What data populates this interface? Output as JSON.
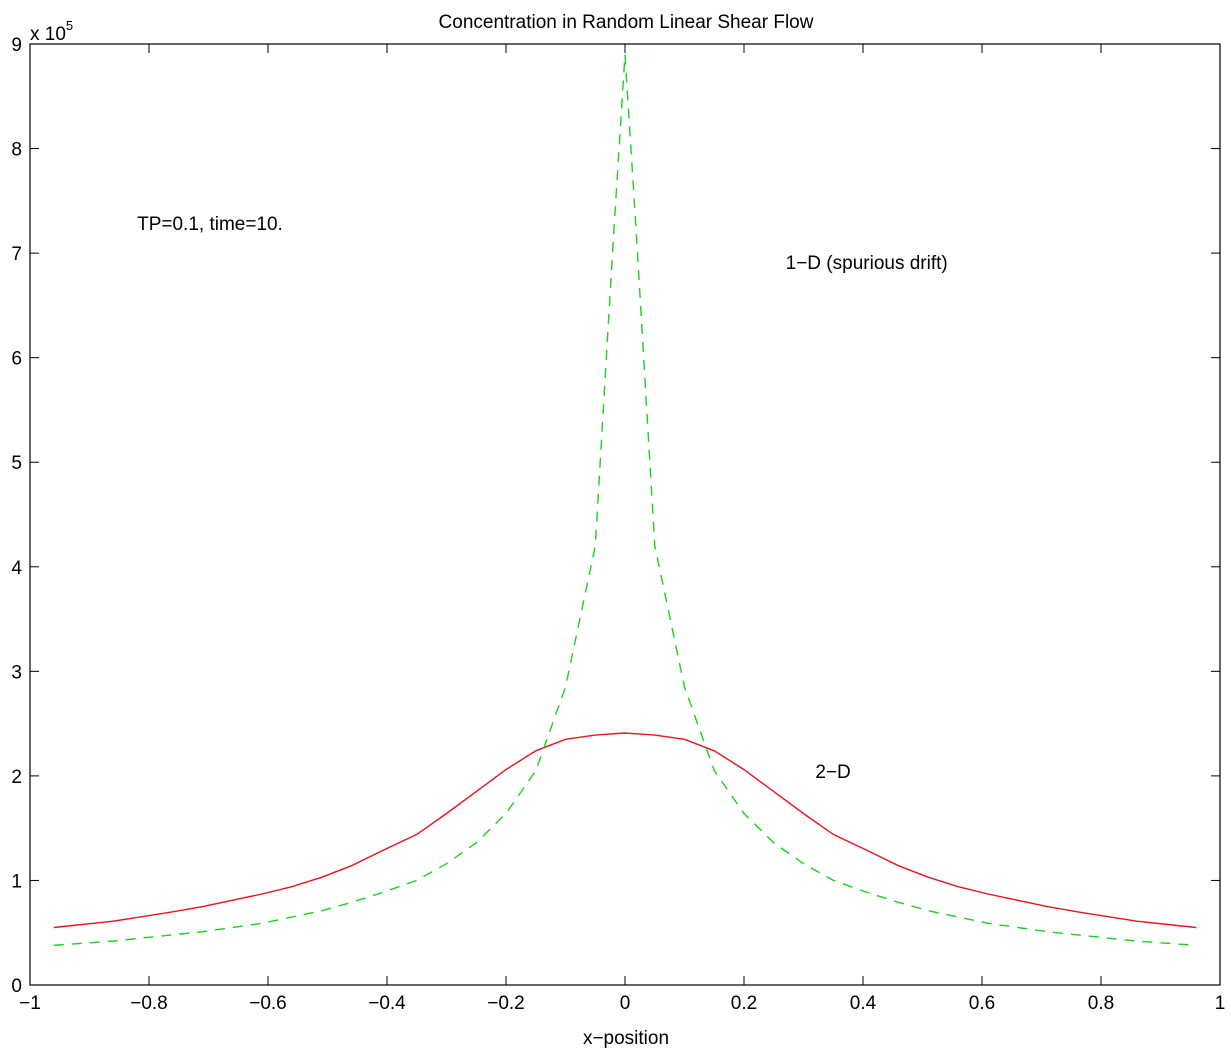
{
  "chart_data": {
    "type": "line",
    "title": "Concentration in Random Linear Shear Flow",
    "xlabel": "x−position",
    "ylabel": "",
    "y_exponent_label": "x 10",
    "y_exponent_power": "5",
    "xlim": [
      -1,
      1
    ],
    "ylim": [
      0,
      9
    ],
    "xticks": [
      -1,
      -0.8,
      -0.6,
      -0.4,
      -0.2,
      0,
      0.2,
      0.4,
      0.6,
      0.8,
      1
    ],
    "xtick_labels": [
      "−1",
      "−0.8",
      "−0.6",
      "−0.4",
      "−0.2",
      "0",
      "0.2",
      "0.4",
      "0.6",
      "0.8",
      "1"
    ],
    "yticks": [
      0,
      1,
      2,
      3,
      4,
      5,
      6,
      7,
      8,
      9
    ],
    "ytick_labels": [
      "0",
      "1",
      "2",
      "3",
      "4",
      "5",
      "6",
      "7",
      "8",
      "9"
    ],
    "grid": false,
    "annotations": [
      {
        "text": "TP=0.1, time=10.",
        "x": -0.82,
        "y": 7.22
      },
      {
        "text": "1−D (spurious drift)",
        "x": 0.27,
        "y": 6.85
      },
      {
        "text": "2−D",
        "x": 0.32,
        "y": 1.98
      }
    ],
    "series": [
      {
        "color": "#e8141e",
        "dash": "solid",
        "x": [
          -0.96,
          -0.86,
          -0.76,
          -0.71,
          -0.66,
          -0.61,
          -0.56,
          -0.51,
          -0.46,
          -0.41,
          -0.35,
          -0.3,
          -0.25,
          -0.2,
          -0.15,
          -0.1,
          -0.05,
          0,
          0.05,
          0.1,
          0.15,
          0.2,
          0.25,
          0.3,
          0.35,
          0.41,
          0.46,
          0.51,
          0.56,
          0.61,
          0.66,
          0.71,
          0.76,
          0.86,
          0.96
        ],
        "values": [
          0.55,
          0.61,
          0.7,
          0.75,
          0.81,
          0.87,
          0.94,
          1.03,
          1.14,
          1.28,
          1.44,
          1.64,
          1.85,
          2.06,
          2.24,
          2.35,
          2.39,
          2.41,
          2.39,
          2.35,
          2.24,
          2.06,
          1.85,
          1.64,
          1.44,
          1.28,
          1.14,
          1.03,
          0.94,
          0.87,
          0.81,
          0.75,
          0.7,
          0.61,
          0.55
        ]
      },
      {
        "color": "#19d219",
        "dash": "dashed",
        "x": [
          -0.96,
          -0.86,
          -0.76,
          -0.71,
          -0.66,
          -0.61,
          -0.56,
          -0.51,
          -0.46,
          -0.41,
          -0.35,
          -0.3,
          -0.25,
          -0.2,
          -0.15,
          -0.1,
          -0.05,
          -0.02,
          0,
          0.02,
          0.05,
          0.1,
          0.15,
          0.2,
          0.25,
          0.3,
          0.35,
          0.41,
          0.46,
          0.51,
          0.56,
          0.61,
          0.66,
          0.71,
          0.76,
          0.86,
          0.96
        ],
        "values": [
          0.38,
          0.42,
          0.48,
          0.51,
          0.55,
          0.59,
          0.65,
          0.71,
          0.79,
          0.88,
          1.0,
          1.16,
          1.36,
          1.64,
          2.05,
          2.85,
          4.2,
          7.1,
          8.9,
          7.1,
          4.2,
          2.85,
          2.05,
          1.64,
          1.36,
          1.16,
          1.0,
          0.88,
          0.79,
          0.71,
          0.65,
          0.59,
          0.55,
          0.51,
          0.48,
          0.42,
          0.38
        ]
      }
    ]
  }
}
